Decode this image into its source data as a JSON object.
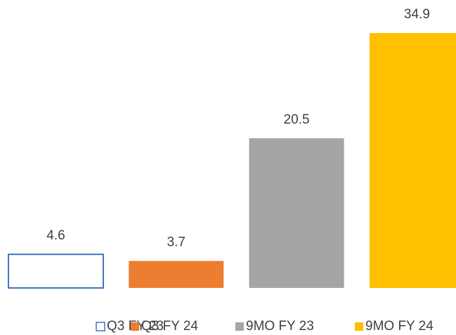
{
  "chart_data": {
    "type": "bar",
    "series": [
      {
        "name": "Q3 FY 23",
        "color": "#4472c4",
        "filled": false,
        "values": [
          4.6
        ]
      },
      {
        "name": "Q3 FY 24",
        "color": "#ed7d31",
        "filled": true,
        "values": [
          3.7
        ]
      },
      {
        "name": "9MO FY 23",
        "color": "#a5a5a5",
        "filled": true,
        "values": [
          20.5
        ]
      },
      {
        "name": "9MO FY 24",
        "color": "#ffc000",
        "filled": true,
        "values": [
          34.9
        ]
      }
    ],
    "legend": "bottom"
  }
}
